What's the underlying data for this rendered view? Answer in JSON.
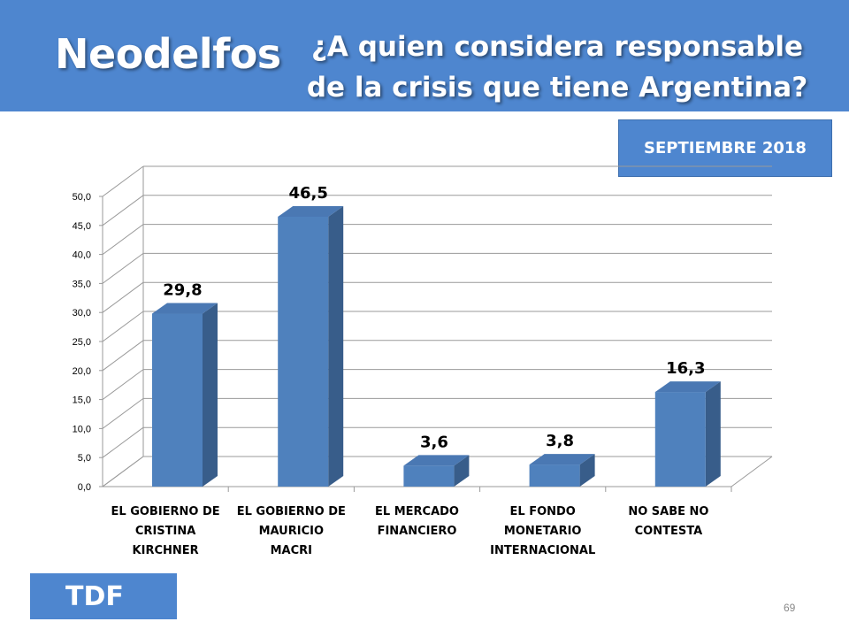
{
  "header": {
    "brand": "Neodelfos",
    "question_line1": "¿A quien considera responsable",
    "question_line2": "de la crisis que tiene Argentina?"
  },
  "date_badge": "SEPTIEMBRE 2018",
  "footer": {
    "tdf_label": "TDF",
    "page_number": "69"
  },
  "colors": {
    "header_bg": "#4e86cf",
    "bar_front": "#4f81bd",
    "bar_side": "#385d8a",
    "bar_top": "#4a78b3"
  },
  "chart_data": {
    "type": "bar",
    "categories": [
      [
        "EL GOBIERNO DE",
        "CRISTINA",
        "KIRCHNER"
      ],
      [
        "EL GOBIERNO DE",
        "MAURICIO",
        "MACRI"
      ],
      [
        "EL MERCADO",
        "FINANCIERO"
      ],
      [
        "EL FONDO",
        "MONETARIO",
        "INTERNACIONAL"
      ],
      [
        "NO SABE NO",
        "CONTESTA"
      ]
    ],
    "values": [
      29.8,
      46.5,
      3.6,
      3.8,
      16.3
    ],
    "data_labels": [
      "29,8",
      "46,5",
      "3,6",
      "3,8",
      "16,3"
    ],
    "y_ticks": [
      "0,0",
      "5,0",
      "10,0",
      "15,0",
      "20,0",
      "25,0",
      "30,0",
      "35,0",
      "40,0",
      "45,0",
      "50,0"
    ],
    "ylim": [
      0,
      50
    ],
    "grid": true,
    "three_d": true,
    "title": "",
    "xlabel": "",
    "ylabel": ""
  }
}
